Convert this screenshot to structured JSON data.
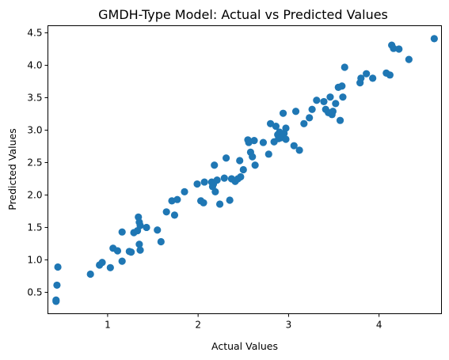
{
  "chart_data": {
    "type": "scatter",
    "title": "GMDH-Type Model: Actual vs Predicted Values",
    "xlabel": "Actual Values",
    "ylabel": "Predicted Values",
    "xlim": [
      0.34,
      4.69
    ],
    "ylim": [
      0.17,
      4.61
    ],
    "xticks": [
      1,
      2,
      3,
      4
    ],
    "yticks": [
      0.5,
      1.0,
      1.5,
      2.0,
      2.5,
      3.0,
      3.5,
      4.0,
      4.5
    ],
    "xtick_labels": [
      "1",
      "2",
      "3",
      "4"
    ],
    "ytick_labels": [
      "0.5",
      "1.0",
      "1.5",
      "2.0",
      "2.5",
      "3.0",
      "3.5",
      "4.0",
      "4.5"
    ],
    "grid": false,
    "marker_color": "#1f77b4",
    "points": [
      [
        0.43,
        0.36
      ],
      [
        0.43,
        0.38
      ],
      [
        0.44,
        0.61
      ],
      [
        0.45,
        0.89
      ],
      [
        0.81,
        0.78
      ],
      [
        0.91,
        0.92
      ],
      [
        0.94,
        0.96
      ],
      [
        1.03,
        0.88
      ],
      [
        1.06,
        1.18
      ],
      [
        1.11,
        1.14
      ],
      [
        1.16,
        1.43
      ],
      [
        1.16,
        0.98
      ],
      [
        1.24,
        1.13
      ],
      [
        1.26,
        1.12
      ],
      [
        1.29,
        1.42
      ],
      [
        1.33,
        1.45
      ],
      [
        1.34,
        1.66
      ],
      [
        1.35,
        1.58
      ],
      [
        1.36,
        1.15
      ],
      [
        1.35,
        1.24
      ],
      [
        1.36,
        1.53
      ],
      [
        1.43,
        1.5
      ],
      [
        1.55,
        1.46
      ],
      [
        1.59,
        1.28
      ],
      [
        1.65,
        1.74
      ],
      [
        1.71,
        1.91
      ],
      [
        1.74,
        1.69
      ],
      [
        1.77,
        1.93
      ],
      [
        1.85,
        2.05
      ],
      [
        1.99,
        2.17
      ],
      [
        2.03,
        1.91
      ],
      [
        2.06,
        1.88
      ],
      [
        2.07,
        2.2
      ],
      [
        2.15,
        2.2
      ],
      [
        2.16,
        2.13
      ],
      [
        2.17,
        2.17
      ],
      [
        2.18,
        2.46
      ],
      [
        2.19,
        2.05
      ],
      [
        2.21,
        2.23
      ],
      [
        2.24,
        1.86
      ],
      [
        2.29,
        2.26
      ],
      [
        2.31,
        2.57
      ],
      [
        2.35,
        1.92
      ],
      [
        2.37,
        2.25
      ],
      [
        2.41,
        2.21
      ],
      [
        2.44,
        2.25
      ],
      [
        2.46,
        2.53
      ],
      [
        2.47,
        2.28
      ],
      [
        2.5,
        2.39
      ],
      [
        2.55,
        2.85
      ],
      [
        2.56,
        2.81
      ],
      [
        2.58,
        2.66
      ],
      [
        2.6,
        2.59
      ],
      [
        2.62,
        2.84
      ],
      [
        2.63,
        2.46
      ],
      [
        2.72,
        2.81
      ],
      [
        2.78,
        2.63
      ],
      [
        2.8,
        3.1
      ],
      [
        2.84,
        2.82
      ],
      [
        2.86,
        3.06
      ],
      [
        2.88,
        2.93
      ],
      [
        2.89,
        2.87
      ],
      [
        2.9,
        2.97
      ],
      [
        2.91,
        2.88
      ],
      [
        2.93,
        2.9
      ],
      [
        2.94,
        3.26
      ],
      [
        2.95,
        2.95
      ],
      [
        2.97,
        3.03
      ],
      [
        2.97,
        2.86
      ],
      [
        3.06,
        2.76
      ],
      [
        3.08,
        3.29
      ],
      [
        3.12,
        2.69
      ],
      [
        3.17,
        3.1
      ],
      [
        3.23,
        3.19
      ],
      [
        3.26,
        3.32
      ],
      [
        3.31,
        3.46
      ],
      [
        3.39,
        3.44
      ],
      [
        3.41,
        3.32
      ],
      [
        3.44,
        3.27
      ],
      [
        3.46,
        3.51
      ],
      [
        3.48,
        3.24
      ],
      [
        3.49,
        3.29
      ],
      [
        3.52,
        3.41
      ],
      [
        3.55,
        3.66
      ],
      [
        3.57,
        3.15
      ],
      [
        3.59,
        3.68
      ],
      [
        3.6,
        3.51
      ],
      [
        3.62,
        3.97
      ],
      [
        3.79,
        3.73
      ],
      [
        3.8,
        3.8
      ],
      [
        3.86,
        3.87
      ],
      [
        3.93,
        3.8
      ],
      [
        4.08,
        3.88
      ],
      [
        4.12,
        3.85
      ],
      [
        4.14,
        4.31
      ],
      [
        4.16,
        4.26
      ],
      [
        4.22,
        4.25
      ],
      [
        4.33,
        4.09
      ],
      [
        4.61,
        4.41
      ]
    ]
  }
}
